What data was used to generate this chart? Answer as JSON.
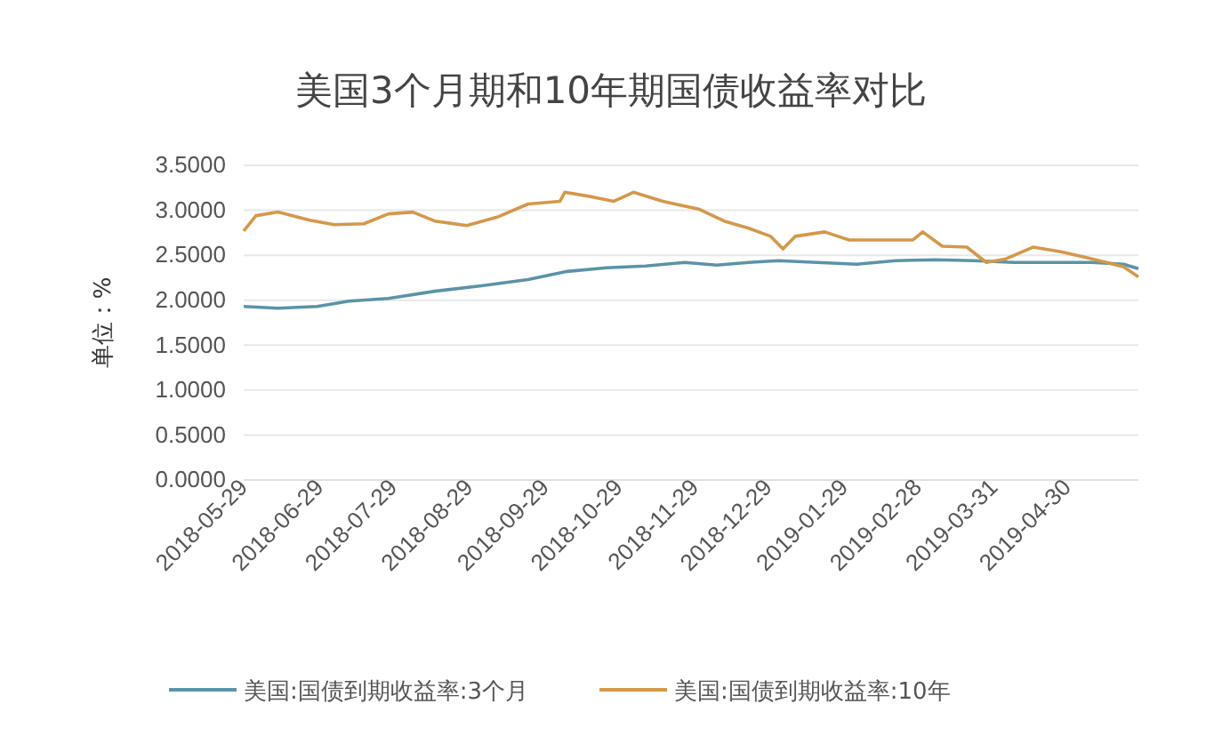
{
  "chart_data": {
    "type": "line",
    "title": "美国3个月期和10年期国债收益率对比",
    "ylabel": "单位：%",
    "xlim": [
      "2018-05-29",
      "2019-05-29"
    ],
    "xticks": [
      "2018-05-29",
      "2018-06-29",
      "2018-07-29",
      "2018-08-29",
      "2018-09-29",
      "2018-10-29",
      "2018-11-29",
      "2018-12-29",
      "2019-01-29",
      "2019-02-28",
      "2019-03-31",
      "2019-04-30"
    ],
    "ylim": [
      0,
      3.5
    ],
    "yticks": [
      {
        "value": 0,
        "label": "0.0000"
      },
      {
        "value": 0.5,
        "label": "0.5000"
      },
      {
        "value": 1,
        "label": "1.0000"
      },
      {
        "value": 1.5,
        "label": "1.5000"
      },
      {
        "value": 2,
        "label": "2.0000"
      },
      {
        "value": 2.5,
        "label": "2.5000"
      },
      {
        "value": 3,
        "label": "3.0000"
      },
      {
        "value": 3.5,
        "label": "3.5000"
      }
    ],
    "grid": "y",
    "legend": "bottom",
    "marker": "none",
    "line_style": "solid",
    "series": [
      {
        "name": "美国:国债到期收益率:3个月",
        "color": "#5b93a8",
        "x": [
          "2018-05-29",
          "2018-06-12",
          "2018-06-28",
          "2018-07-11",
          "2018-07-27",
          "2018-08-15",
          "2018-09-03",
          "2018-09-22",
          "2018-10-08",
          "2018-10-24",
          "2018-11-09",
          "2018-11-25",
          "2018-12-08",
          "2018-12-21",
          "2019-01-02",
          "2019-01-18",
          "2019-02-03",
          "2019-02-19",
          "2019-03-07",
          "2019-03-23",
          "2019-04-08",
          "2019-04-24",
          "2019-05-10",
          "2019-05-23",
          "2019-05-29"
        ],
        "values": [
          1.93,
          1.91,
          1.93,
          1.99,
          2.02,
          2.1,
          2.16,
          2.23,
          2.32,
          2.36,
          2.38,
          2.42,
          2.39,
          2.42,
          2.44,
          2.42,
          2.4,
          2.44,
          2.45,
          2.44,
          2.42,
          2.42,
          2.42,
          2.4,
          2.35
        ]
      },
      {
        "name": "美国:国债到期收益率:10年",
        "color": "#d4984a",
        "x": [
          "2018-05-29",
          "2018-06-03",
          "2018-06-12",
          "2018-06-25",
          "2018-07-05",
          "2018-07-17",
          "2018-07-27",
          "2018-08-06",
          "2018-08-15",
          "2018-08-28",
          "2018-09-10",
          "2018-09-22",
          "2018-10-05",
          "2018-10-07",
          "2018-10-18",
          "2018-10-27",
          "2018-11-04",
          "2018-11-16",
          "2018-12-01",
          "2018-12-11",
          "2018-12-21",
          "2018-12-30",
          "2019-01-04",
          "2019-01-09",
          "2019-01-21",
          "2019-01-31",
          "2019-02-13",
          "2019-02-26",
          "2019-03-02",
          "2019-03-10",
          "2019-03-20",
          "2019-03-28",
          "2019-04-05",
          "2019-04-16",
          "2019-04-27",
          "2019-05-07",
          "2019-05-16",
          "2019-05-23",
          "2019-05-29"
        ],
        "values": [
          2.77,
          2.94,
          2.98,
          2.89,
          2.84,
          2.85,
          2.96,
          2.98,
          2.88,
          2.83,
          2.93,
          3.07,
          3.1,
          3.2,
          3.15,
          3.1,
          3.2,
          3.1,
          3.01,
          2.88,
          2.8,
          2.71,
          2.57,
          2.71,
          2.76,
          2.67,
          2.67,
          2.67,
          2.76,
          2.6,
          2.59,
          2.42,
          2.46,
          2.59,
          2.54,
          2.48,
          2.42,
          2.37,
          2.26
        ]
      }
    ]
  }
}
